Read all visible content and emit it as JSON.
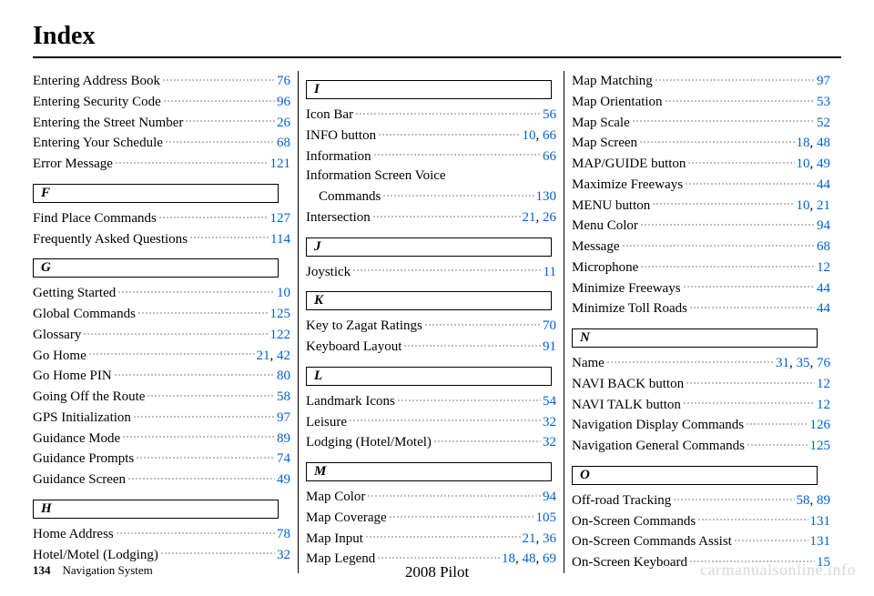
{
  "title": "Index",
  "footer": {
    "page_number": "134",
    "section": "Navigation System",
    "center": "2008  Pilot",
    "watermark": "carmanualsonline.info"
  },
  "link_color": "#0060d8",
  "columns": [
    {
      "groups": [
        {
          "letter": null,
          "entries": [
            {
              "label": "Entering Address Book",
              "pages": [
                "76"
              ]
            },
            {
              "label": "Entering Security Code",
              "pages": [
                "96"
              ]
            },
            {
              "label": "Entering the Street Number",
              "pages": [
                "26"
              ]
            },
            {
              "label": "Entering Your Schedule",
              "pages": [
                "68"
              ]
            },
            {
              "label": "Error Message",
              "pages": [
                "121"
              ]
            }
          ]
        },
        {
          "letter": "F",
          "entries": [
            {
              "label": "Find Place Commands",
              "pages": [
                "127"
              ]
            },
            {
              "label": "Frequently Asked Questions",
              "pages": [
                "114"
              ]
            }
          ]
        },
        {
          "letter": "G",
          "entries": [
            {
              "label": "Getting Started",
              "pages": [
                "10"
              ]
            },
            {
              "label": "Global Commands",
              "pages": [
                "125"
              ]
            },
            {
              "label": "Glossary",
              "pages": [
                "122"
              ]
            },
            {
              "label": "Go Home",
              "pages": [
                "21",
                "42"
              ]
            },
            {
              "label": "Go Home PIN",
              "pages": [
                "80"
              ]
            },
            {
              "label": "Going Off the Route",
              "pages": [
                "58"
              ]
            },
            {
              "label": "GPS Initialization",
              "pages": [
                "97"
              ]
            },
            {
              "label": "Guidance Mode",
              "pages": [
                "89"
              ]
            },
            {
              "label": "Guidance Prompts",
              "pages": [
                "74"
              ]
            },
            {
              "label": "Guidance Screen",
              "pages": [
                "49"
              ]
            }
          ]
        },
        {
          "letter": "H",
          "entries": [
            {
              "label": "Home Address",
              "pages": [
                "78"
              ]
            },
            {
              "label": "Hotel/Motel (Lodging)",
              "pages": [
                "32"
              ]
            }
          ]
        }
      ]
    },
    {
      "groups": [
        {
          "letter": "I",
          "entries": [
            {
              "label": "Icon Bar",
              "pages": [
                "56"
              ]
            },
            {
              "label": "INFO button",
              "pages": [
                "10",
                "66"
              ]
            },
            {
              "label": "Information",
              "pages": [
                "66"
              ]
            },
            {
              "label": "Information Screen Voice",
              "pages": [],
              "nodots": true
            },
            {
              "label": "Commands",
              "pages": [
                "130"
              ],
              "indent": true
            },
            {
              "label": "Intersection",
              "pages": [
                "21",
                "26"
              ]
            }
          ]
        },
        {
          "letter": "J",
          "entries": [
            {
              "label": "Joystick",
              "pages": [
                "11"
              ]
            }
          ]
        },
        {
          "letter": "K",
          "entries": [
            {
              "label": "Key to Zagat Ratings",
              "pages": [
                "70"
              ]
            },
            {
              "label": "Keyboard Layout",
              "pages": [
                "91"
              ]
            }
          ]
        },
        {
          "letter": "L",
          "entries": [
            {
              "label": "Landmark Icons",
              "pages": [
                "54"
              ]
            },
            {
              "label": "Leisure",
              "pages": [
                "32"
              ]
            },
            {
              "label": "Lodging (Hotel/Motel)",
              "pages": [
                "32"
              ]
            }
          ]
        },
        {
          "letter": "M",
          "entries": [
            {
              "label": "Map Color",
              "pages": [
                "94"
              ]
            },
            {
              "label": "Map Coverage",
              "pages": [
                "105"
              ]
            },
            {
              "label": "Map Input",
              "pages": [
                "21",
                "36"
              ]
            },
            {
              "label": "Map Legend",
              "pages": [
                "18",
                "48",
                "69"
              ]
            }
          ]
        }
      ]
    },
    {
      "groups": [
        {
          "letter": null,
          "entries": [
            {
              "label": "Map Matching",
              "pages": [
                "97"
              ]
            },
            {
              "label": "Map Orientation",
              "pages": [
                "53"
              ]
            },
            {
              "label": "Map Scale",
              "pages": [
                "52"
              ]
            },
            {
              "label": "Map Screen",
              "pages": [
                "18",
                "48"
              ]
            },
            {
              "label": "MAP/GUIDE button",
              "pages": [
                "10",
                "49"
              ]
            },
            {
              "label": "Maximize Freeways",
              "pages": [
                "44"
              ]
            },
            {
              "label": "MENU button",
              "pages": [
                "10",
                "21"
              ]
            },
            {
              "label": "Menu Color",
              "pages": [
                "94"
              ]
            },
            {
              "label": "Message",
              "pages": [
                "68"
              ]
            },
            {
              "label": "Microphone",
              "pages": [
                "12"
              ]
            },
            {
              "label": "Minimize Freeways",
              "pages": [
                "44"
              ]
            },
            {
              "label": "Minimize Toll Roads",
              "pages": [
                "44"
              ]
            }
          ]
        },
        {
          "letter": "N",
          "entries": [
            {
              "label": "Name",
              "pages": [
                "31",
                "35",
                "76"
              ]
            },
            {
              "label": "NAVI BACK button",
              "pages": [
                "12"
              ]
            },
            {
              "label": "NAVI TALK button",
              "pages": [
                "12"
              ]
            },
            {
              "label": "Navigation Display Commands",
              "pages": [
                "126"
              ]
            },
            {
              "label": "Navigation General Commands",
              "pages": [
                "125"
              ]
            }
          ]
        },
        {
          "letter": "O",
          "entries": [
            {
              "label": "Off-road Tracking",
              "pages": [
                "58",
                "89"
              ]
            },
            {
              "label": "On-Screen Commands",
              "pages": [
                "131"
              ]
            },
            {
              "label": "On-Screen Commands Assist",
              "pages": [
                "131"
              ]
            },
            {
              "label": "On-Screen Keyboard",
              "pages": [
                "15"
              ]
            }
          ]
        }
      ]
    }
  ]
}
